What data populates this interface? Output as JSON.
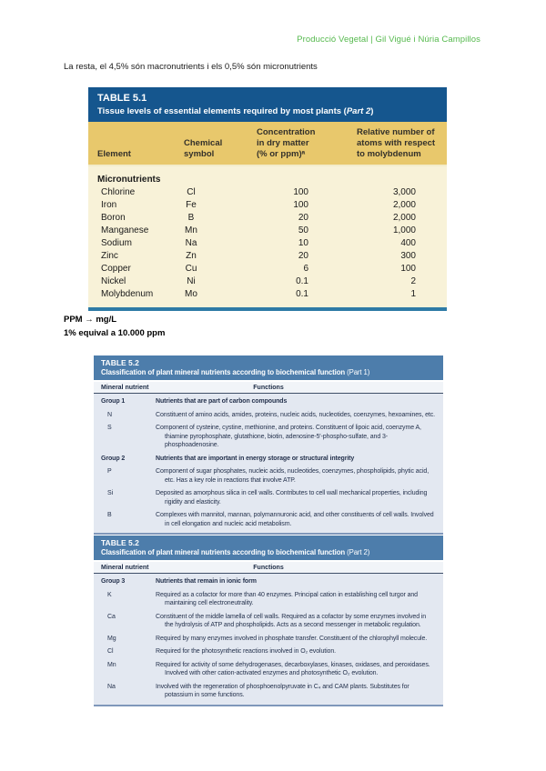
{
  "page": {
    "credit": "Producció Vegetal | Gil Vigué i Núria Campillos",
    "intro": "La resta, el 4,5% són macronutrients i els 0,5% són micronutrients",
    "note_line1": "PPM → mg/L",
    "note_line2": "1% equival a 10.000 ppm"
  },
  "colors": {
    "credit_green": "#55b94d",
    "t51_header_blue": "#15568e",
    "t51_colhead_gold": "#e8c86c",
    "t51_body_cream": "#f8f2d8",
    "t51_rule_teal": "#2e7ba6",
    "t52_header_blue": "#4d7dab",
    "t52_body_blue_grey": "#e3e8f1"
  },
  "table51": {
    "title": "TABLE 5.1",
    "subtitle_pre": "Tissue levels of essential elements required by most plants (",
    "subtitle_part": "Part 2",
    "subtitle_post": ")",
    "col_element": "Element",
    "col_symbol": "Chemical\nsymbol",
    "col_concentration": "Concentration\nin dry matter\n(% or ppm)ᵃ",
    "col_relative": "Relative number of\natoms with respect\nto molybdenum",
    "section": "Micronutrients",
    "rows": [
      {
        "element": "Chlorine",
        "symbol": "Cl",
        "concentration": "100",
        "relative": "3,000"
      },
      {
        "element": "Iron",
        "symbol": "Fe",
        "concentration": "100",
        "relative": "2,000"
      },
      {
        "element": "Boron",
        "symbol": "B",
        "concentration": "20",
        "relative": "2,000"
      },
      {
        "element": "Manganese",
        "symbol": "Mn",
        "concentration": "50",
        "relative": "1,000"
      },
      {
        "element": "Sodium",
        "symbol": "Na",
        "concentration": "10",
        "relative": "400"
      },
      {
        "element": "Zinc",
        "symbol": "Zn",
        "concentration": "20",
        "relative": "300"
      },
      {
        "element": "Copper",
        "symbol": "Cu",
        "concentration": "6",
        "relative": "100"
      },
      {
        "element": "Nickel",
        "symbol": "Ni",
        "concentration": "0.1",
        "relative": "2"
      },
      {
        "element": "Molybdenum",
        "symbol": "Mo",
        "concentration": "0.1",
        "relative": "1"
      }
    ]
  },
  "table52_part1": {
    "title": "TABLE 5.2",
    "subtitle": "Classification of plant mineral nutrients according to biochemical function",
    "part": " (Part 1)",
    "col1": "Mineral nutrient",
    "col2": "Functions",
    "rows": [
      {
        "label": "Group 1",
        "text": "Nutrients that are part of carbon compounds"
      },
      {
        "label": "N",
        "text": "Constituent of amino acids, amides, proteins, nucleic acids, nucleotides, coenzymes, hexoamines, etc."
      },
      {
        "label": "S",
        "text": "Component of cysteine, cystine, methionine, and proteins. Constituent of lipoic acid, coenzyme A, thiamine pyrophosphate, glutathione, biotin, adenosine-5′-phospho-sulfate, and 3-phosphoadenosine."
      },
      {
        "label": "Group 2",
        "text": "Nutrients that are important in energy storage or structural integrity"
      },
      {
        "label": "P",
        "text": "Component of sugar phosphates, nucleic acids, nucleotides, coenzymes, phospholipids, phytic acid, etc. Has a key role in reactions that involve ATP."
      },
      {
        "label": "Si",
        "text": "Deposited as amorphous silica in cell walls. Contributes to cell wall mechanical properties, including rigidity and elasticity."
      },
      {
        "label": "B",
        "text": "Complexes with mannitol, mannan, polymannuronic acid, and other constituents of cell walls. Involved in cell elongation and nucleic acid metabolism."
      }
    ]
  },
  "table52_part2": {
    "title": "TABLE 5.2",
    "subtitle": "Classification of plant mineral nutrients according to biochemical function",
    "part": " (Part 2)",
    "col1": "Mineral nutrient",
    "col2": "Functions",
    "rows": [
      {
        "label": "Group 3",
        "text": "Nutrients that remain in ionic form"
      },
      {
        "label": "K",
        "text": "Required as a cofactor for more than 40 enzymes. Principal cation in establishing cell turgor and maintaining cell electroneutrality."
      },
      {
        "label": "Ca",
        "text": "Constituent of the middle lamella of cell walls. Required as a cofactor by some enzymes involved in the hydrolysis of ATP and phospholipids. Acts as a second messenger in metabolic regulation."
      },
      {
        "label": "Mg",
        "text": "Required by many enzymes involved in phosphate transfer. Constituent of the chlorophyll molecule."
      },
      {
        "label": "Cl",
        "text": "Required for the photosynthetic reactions involved in O₂ evolution."
      },
      {
        "label": "Mn",
        "text": "Required for activity of some dehydrogenases, decarboxylases, kinases, oxidases, and peroxidases. Involved with other cation-activated enzymes and photosynthetic O₂ evolution."
      },
      {
        "label": "Na",
        "text": "Involved with the regeneration of phosphoenolpyruvate in C₄ and CAM plants. Substitutes for potassium in some functions."
      }
    ]
  }
}
